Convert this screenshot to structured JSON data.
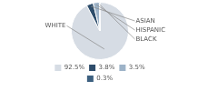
{
  "chart_data": {
    "type": "pie",
    "categories": [
      "WHITE",
      "ASIAN",
      "HISPANIC",
      "BLACK"
    ],
    "values": [
      92.5,
      3.8,
      3.5,
      0.3
    ],
    "value_labels": [
      "92.5%",
      "3.8%",
      "3.5%",
      "0.3%"
    ],
    "colors": [
      "#d6dce4",
      "#2e4d6b",
      "#9db3c8",
      "#3d6080"
    ],
    "legend": "bottom"
  }
}
